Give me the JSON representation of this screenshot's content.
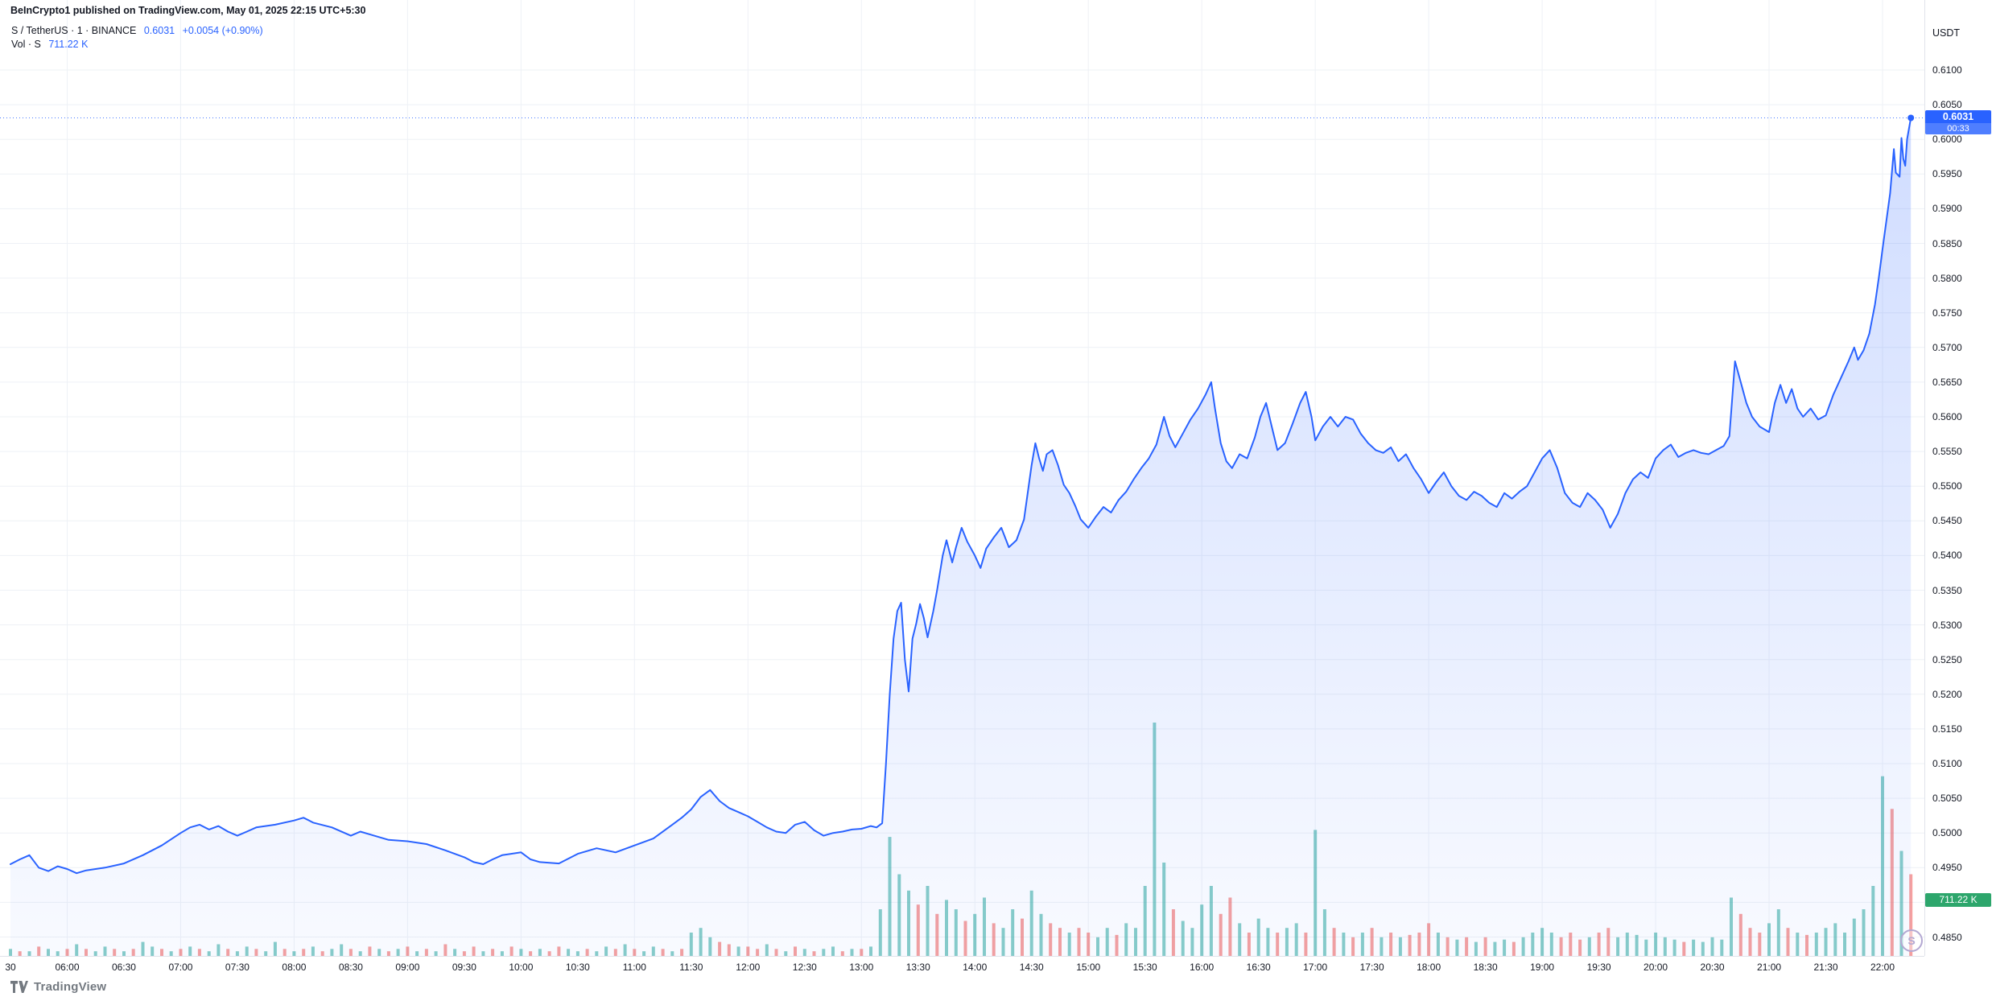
{
  "header": {
    "attribution": "BeInCrypto1 published on TradingView.com, May 01, 2025 22:15 UTC+5:30"
  },
  "legend": {
    "symbol_title": "S / TetherUS · 1 · BINANCE",
    "price": "0.6031",
    "change": "+0.0054 (+0.90%)",
    "volume_label": "Vol · S",
    "volume_value": "711.22 K"
  },
  "price_axis": {
    "currency": "USDT",
    "labels": [
      "0.6100",
      "0.6050",
      "0.6000",
      "0.5950",
      "0.5900",
      "0.5850",
      "0.5800",
      "0.5750",
      "0.5700",
      "0.5650",
      "0.5600",
      "0.5550",
      "0.5500",
      "0.5450",
      "0.5400",
      "0.5350",
      "0.5300",
      "0.5250",
      "0.5200",
      "0.5150",
      "0.5100",
      "0.5050",
      "0.5000",
      "0.4950",
      "0.4900",
      "0.4850"
    ],
    "current_price_badge": {
      "price": "0.6031",
      "countdown": "00:33"
    },
    "volume_badge": "711.22 K"
  },
  "time_axis": {
    "labels": [
      "30",
      "06:00",
      "06:30",
      "07:00",
      "07:30",
      "08:00",
      "08:30",
      "09:00",
      "09:30",
      "10:00",
      "10:30",
      "11:00",
      "11:30",
      "12:00",
      "12:30",
      "13:00",
      "13:30",
      "14:00",
      "14:30",
      "15:00",
      "15:30",
      "16:00",
      "16:30",
      "17:00",
      "17:30",
      "18:00",
      "18:30",
      "19:00",
      "19:30",
      "20:00",
      "20:30",
      "21:00",
      "21:30",
      "22:00"
    ],
    "t_minutes": [
      0,
      30,
      60,
      90,
      120,
      150,
      180,
      210,
      240,
      270,
      300,
      330,
      360,
      390,
      420,
      450,
      480,
      510,
      540,
      570,
      600,
      630,
      660,
      690,
      720,
      750,
      780,
      810,
      840,
      870,
      900,
      930,
      960,
      990
    ]
  },
  "footer": {
    "logo_text": "TradingView"
  },
  "watermark": {
    "symbol_letter": "S"
  },
  "colors": {
    "accent_blue": "#2962ff",
    "area_top": "rgba(41,98,255,0.22)",
    "area_bottom": "rgba(41,98,255,0.03)",
    "volume_up": "rgba(38,166,154,0.55)",
    "volume_down": "rgba(239,83,80,0.55)",
    "volume_badge_bg": "#2da66c",
    "grid": "#eef1f6",
    "axis_text": "#131722",
    "logo_gray": "#737980"
  },
  "chart_data": {
    "type": "line",
    "symbol": "S/USDT",
    "exchange": "BINANCE",
    "interval_minutes": 1,
    "current_price": 0.6031,
    "x_unit": "minutes since 05:30",
    "x_range": [
      0,
      1005
    ],
    "tick_range": [
      0.485,
      0.61
    ],
    "ylim_plot": [
      0.4823,
      0.6201
    ],
    "legend_position": "top-left",
    "grid": true,
    "line_points": [
      [
        0,
        0.4955
      ],
      [
        5,
        0.4962
      ],
      [
        10,
        0.4968
      ],
      [
        15,
        0.495
      ],
      [
        20,
        0.4945
      ],
      [
        25,
        0.4952
      ],
      [
        30,
        0.4948
      ],
      [
        35,
        0.4942
      ],
      [
        40,
        0.4946
      ],
      [
        50,
        0.495
      ],
      [
        60,
        0.4956
      ],
      [
        70,
        0.4968
      ],
      [
        80,
        0.4982
      ],
      [
        90,
        0.5
      ],
      [
        95,
        0.5008
      ],
      [
        100,
        0.5012
      ],
      [
        105,
        0.5005
      ],
      [
        110,
        0.501
      ],
      [
        115,
        0.5002
      ],
      [
        120,
        0.4996
      ],
      [
        125,
        0.5002
      ],
      [
        130,
        0.5008
      ],
      [
        140,
        0.5012
      ],
      [
        150,
        0.5018
      ],
      [
        155,
        0.5022
      ],
      [
        160,
        0.5015
      ],
      [
        170,
        0.5008
      ],
      [
        180,
        0.4996
      ],
      [
        185,
        0.5002
      ],
      [
        190,
        0.4998
      ],
      [
        200,
        0.499
      ],
      [
        210,
        0.4988
      ],
      [
        220,
        0.4984
      ],
      [
        230,
        0.4975
      ],
      [
        240,
        0.4965
      ],
      [
        245,
        0.4958
      ],
      [
        250,
        0.4955
      ],
      [
        255,
        0.4962
      ],
      [
        260,
        0.4968
      ],
      [
        270,
        0.4972
      ],
      [
        275,
        0.4962
      ],
      [
        280,
        0.4958
      ],
      [
        290,
        0.4956
      ],
      [
        300,
        0.497
      ],
      [
        310,
        0.4978
      ],
      [
        320,
        0.4972
      ],
      [
        330,
        0.4982
      ],
      [
        340,
        0.4992
      ],
      [
        350,
        0.5012
      ],
      [
        355,
        0.5022
      ],
      [
        360,
        0.5034
      ],
      [
        365,
        0.5052
      ],
      [
        370,
        0.5062
      ],
      [
        375,
        0.5046
      ],
      [
        380,
        0.5036
      ],
      [
        385,
        0.503
      ],
      [
        390,
        0.5024
      ],
      [
        395,
        0.5016
      ],
      [
        400,
        0.5008
      ],
      [
        405,
        0.5002
      ],
      [
        410,
        0.5
      ],
      [
        415,
        0.5012
      ],
      [
        420,
        0.5016
      ],
      [
        425,
        0.5004
      ],
      [
        430,
        0.4996
      ],
      [
        435,
        0.5
      ],
      [
        440,
        0.5002
      ],
      [
        445,
        0.5005
      ],
      [
        450,
        0.5006
      ],
      [
        455,
        0.501
      ],
      [
        458,
        0.5008
      ],
      [
        461,
        0.5014
      ],
      [
        463,
        0.51
      ],
      [
        465,
        0.52
      ],
      [
        467,
        0.528
      ],
      [
        469,
        0.532
      ],
      [
        471,
        0.5332
      ],
      [
        473,
        0.525
      ],
      [
        475,
        0.5204
      ],
      [
        477,
        0.528
      ],
      [
        479,
        0.5302
      ],
      [
        481,
        0.533
      ],
      [
        483,
        0.531
      ],
      [
        485,
        0.5282
      ],
      [
        488,
        0.532
      ],
      [
        490,
        0.535
      ],
      [
        493,
        0.54
      ],
      [
        495,
        0.5422
      ],
      [
        498,
        0.539
      ],
      [
        500,
        0.5412
      ],
      [
        503,
        0.544
      ],
      [
        506,
        0.542
      ],
      [
        510,
        0.54
      ],
      [
        513,
        0.5382
      ],
      [
        516,
        0.541
      ],
      [
        520,
        0.5426
      ],
      [
        524,
        0.544
      ],
      [
        528,
        0.5412
      ],
      [
        532,
        0.5422
      ],
      [
        536,
        0.5452
      ],
      [
        540,
        0.553
      ],
      [
        542,
        0.5562
      ],
      [
        544,
        0.554
      ],
      [
        546,
        0.5522
      ],
      [
        548,
        0.5546
      ],
      [
        551,
        0.5552
      ],
      [
        554,
        0.553
      ],
      [
        557,
        0.5502
      ],
      [
        560,
        0.549
      ],
      [
        563,
        0.5472
      ],
      [
        566,
        0.5452
      ],
      [
        570,
        0.544
      ],
      [
        574,
        0.5456
      ],
      [
        578,
        0.547
      ],
      [
        582,
        0.5462
      ],
      [
        586,
        0.548
      ],
      [
        590,
        0.5492
      ],
      [
        594,
        0.551
      ],
      [
        598,
        0.5526
      ],
      [
        602,
        0.554
      ],
      [
        606,
        0.556
      ],
      [
        610,
        0.56
      ],
      [
        613,
        0.5572
      ],
      [
        616,
        0.5556
      ],
      [
        620,
        0.5576
      ],
      [
        624,
        0.5596
      ],
      [
        628,
        0.5612
      ],
      [
        632,
        0.5632
      ],
      [
        635,
        0.565
      ],
      [
        637,
        0.5612
      ],
      [
        640,
        0.5562
      ],
      [
        643,
        0.5536
      ],
      [
        646,
        0.5526
      ],
      [
        650,
        0.5546
      ],
      [
        654,
        0.554
      ],
      [
        658,
        0.557
      ],
      [
        661,
        0.56
      ],
      [
        664,
        0.562
      ],
      [
        667,
        0.5586
      ],
      [
        670,
        0.5552
      ],
      [
        674,
        0.5562
      ],
      [
        678,
        0.559
      ],
      [
        682,
        0.562
      ],
      [
        685,
        0.5636
      ],
      [
        688,
        0.56
      ],
      [
        690,
        0.5566
      ],
      [
        694,
        0.5586
      ],
      [
        698,
        0.56
      ],
      [
        702,
        0.5586
      ],
      [
        706,
        0.56
      ],
      [
        710,
        0.5596
      ],
      [
        714,
        0.5576
      ],
      [
        718,
        0.5562
      ],
      [
        722,
        0.5552
      ],
      [
        726,
        0.5548
      ],
      [
        730,
        0.5556
      ],
      [
        734,
        0.5536
      ],
      [
        738,
        0.5546
      ],
      [
        742,
        0.5526
      ],
      [
        746,
        0.551
      ],
      [
        750,
        0.549
      ],
      [
        754,
        0.5506
      ],
      [
        758,
        0.552
      ],
      [
        762,
        0.55
      ],
      [
        766,
        0.5486
      ],
      [
        770,
        0.548
      ],
      [
        774,
        0.5492
      ],
      [
        778,
        0.5486
      ],
      [
        782,
        0.5476
      ],
      [
        786,
        0.547
      ],
      [
        790,
        0.549
      ],
      [
        794,
        0.5482
      ],
      [
        798,
        0.5492
      ],
      [
        802,
        0.55
      ],
      [
        806,
        0.552
      ],
      [
        810,
        0.554
      ],
      [
        814,
        0.5552
      ],
      [
        818,
        0.5526
      ],
      [
        822,
        0.549
      ],
      [
        826,
        0.5476
      ],
      [
        830,
        0.547
      ],
      [
        834,
        0.549
      ],
      [
        838,
        0.548
      ],
      [
        842,
        0.5466
      ],
      [
        846,
        0.544
      ],
      [
        850,
        0.546
      ],
      [
        854,
        0.549
      ],
      [
        858,
        0.551
      ],
      [
        862,
        0.552
      ],
      [
        866,
        0.5512
      ],
      [
        870,
        0.554
      ],
      [
        874,
        0.5552
      ],
      [
        878,
        0.556
      ],
      [
        882,
        0.5542
      ],
      [
        886,
        0.5548
      ],
      [
        890,
        0.5552
      ],
      [
        894,
        0.5548
      ],
      [
        898,
        0.5546
      ],
      [
        902,
        0.5552
      ],
      [
        906,
        0.5558
      ],
      [
        909,
        0.5572
      ],
      [
        912,
        0.568
      ],
      [
        915,
        0.565
      ],
      [
        918,
        0.562
      ],
      [
        921,
        0.56
      ],
      [
        925,
        0.5586
      ],
      [
        930,
        0.5578
      ],
      [
        933,
        0.562
      ],
      [
        936,
        0.5646
      ],
      [
        939,
        0.562
      ],
      [
        942,
        0.564
      ],
      [
        945,
        0.5612
      ],
      [
        948,
        0.56
      ],
      [
        952,
        0.5612
      ],
      [
        956,
        0.5596
      ],
      [
        960,
        0.5602
      ],
      [
        964,
        0.5632
      ],
      [
        968,
        0.5656
      ],
      [
        972,
        0.568
      ],
      [
        975,
        0.57
      ],
      [
        977,
        0.5682
      ],
      [
        980,
        0.5696
      ],
      [
        983,
        0.572
      ],
      [
        986,
        0.5762
      ],
      [
        988,
        0.58
      ],
      [
        990,
        0.5842
      ],
      [
        992,
        0.5882
      ],
      [
        994,
        0.5922
      ],
      [
        996,
        0.5986
      ],
      [
        997,
        0.5952
      ],
      [
        999,
        0.5946
      ],
      [
        1000,
        0.6002
      ],
      [
        1001,
        0.5972
      ],
      [
        1002,
        0.5962
      ],
      [
        1003,
        0.6
      ],
      [
        1004,
        0.6016
      ],
      [
        1005,
        0.6031
      ]
    ],
    "volume_bars": {
      "step_minutes": 5,
      "unit": "percent_of_tallest_bar",
      "bars": [
        "3g",
        "2r",
        "2g",
        "4r",
        "3g",
        "2g",
        "3r",
        "5g",
        "3r",
        "2g",
        "4g",
        "3r",
        "2g",
        "3r",
        "6g",
        "4g",
        "3r",
        "2g",
        "3r",
        "4g",
        "3r",
        "2g",
        "5g",
        "3r",
        "2g",
        "4g",
        "3r",
        "2g",
        "6g",
        "3r",
        "2g",
        "3r",
        "4g",
        "2r",
        "3g",
        "5g",
        "3r",
        "2g",
        "4r",
        "3g",
        "2r",
        "3g",
        "4r",
        "2g",
        "3r",
        "2g",
        "5r",
        "3g",
        "2r",
        "4r",
        "2g",
        "3r",
        "2g",
        "4r",
        "3g",
        "2r",
        "3g",
        "2r",
        "4r",
        "3g",
        "2g",
        "3r",
        "2g",
        "4g",
        "3r",
        "5g",
        "3r",
        "2g",
        "4g",
        "3r",
        "2g",
        "3r",
        "10g",
        "12g",
        "8g",
        "6r",
        "5r",
        "4g",
        "4r",
        "3r",
        "5g",
        "3r",
        "2g",
        "4r",
        "3g",
        "2r",
        "3g",
        "4g",
        "2r",
        "3g",
        "3r",
        "4g",
        "20g",
        "51g",
        "35g",
        "28g",
        "22r",
        "30g",
        "18r",
        "24g",
        "20g",
        "15r",
        "18g",
        "25g",
        "14r",
        "12g",
        "20g",
        "16r",
        "28g",
        "18g",
        "14r",
        "12r",
        "10g",
        "12r",
        "10r",
        "8g",
        "12g",
        "9r",
        "14g",
        "12g",
        "30g",
        "100g",
        "40g",
        "20r",
        "15g",
        "12g",
        "22g",
        "30g",
        "18r",
        "25r",
        "14g",
        "10r",
        "16g",
        "12g",
        "10r",
        "12g",
        "14g",
        "10r",
        "54g",
        "20g",
        "12r",
        "10g",
        "8r",
        "10g",
        "12r",
        "8g",
        "10r",
        "8g",
        "9r",
        "10r",
        "14r",
        "10g",
        "8r",
        "7g",
        "8r",
        "6g",
        "8r",
        "6g",
        "7g",
        "6r",
        "8g",
        "10g",
        "12g",
        "10g",
        "8r",
        "10r",
        "7r",
        "8g",
        "10r",
        "12r",
        "8g",
        "10g",
        "9g",
        "7g",
        "10g",
        "8g",
        "7g",
        "6r",
        "7g",
        "6g",
        "8g",
        "7g",
        "25g",
        "18r",
        "12r",
        "10r",
        "14g",
        "20g",
        "12r",
        "10g",
        "9r",
        "10g",
        "12g",
        "14g",
        "10g",
        "16g",
        "20g",
        "30g",
        "77g",
        "63r",
        "45g",
        "35r"
      ]
    }
  }
}
